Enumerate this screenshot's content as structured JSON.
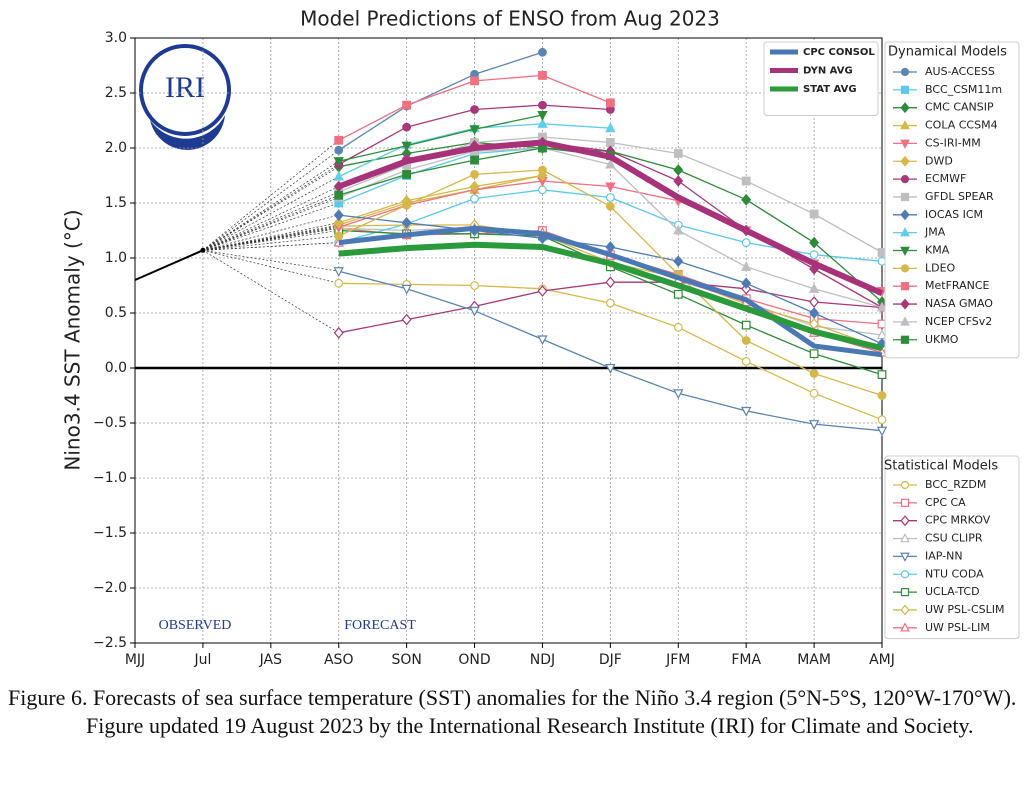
{
  "chart_data": {
    "type": "line",
    "title": "Model Predictions of ENSO from Aug 2023",
    "y_label": "Nino3.4 SST Anomaly (°C)",
    "logo": "IRI",
    "observed_label": "OBSERVED",
    "forecast_label": "FORECAST",
    "dynamical_title": "Dynamical Models",
    "statistical_title": "Statistical Models",
    "categories": [
      "MJJ",
      "Jul",
      "JAS",
      "ASO",
      "SON",
      "OND",
      "NDJ",
      "DJF",
      "JFM",
      "FMA",
      "MAM",
      "AMJ"
    ],
    "ylim": [
      -2.5,
      3.0
    ],
    "yticks": [
      {
        "value": 3,
        "label": "3.0"
      },
      2.5,
      {
        "value": 2,
        "label": "2.0"
      },
      1.5,
      {
        "value": 1,
        "label": "1.0"
      },
      0.5,
      {
        "value": 0,
        "label": "0.0"
      },
      {
        "value": -0.5,
        "label": "−0.5"
      },
      {
        "value": -1,
        "label": "−1.0"
      },
      {
        "value": -1.5,
        "label": "−1.5"
      },
      {
        "value": -2,
        "label": "−2.0"
      },
      {
        "value": -2.5,
        "label": "−2.5"
      }
    ],
    "grid": true,
    "observed": {
      "color": "#000000",
      "values": [
        0.8,
        1.07,
        null,
        null,
        null,
        null,
        null,
        null,
        null,
        null,
        null,
        null
      ]
    },
    "series": [
      {
        "name": "AUS-ACCESS",
        "group": "dynamical",
        "marker": "circle",
        "color": "#5b84b1",
        "values": [
          null,
          null,
          null,
          1.98,
          2.38,
          2.67,
          2.87,
          null,
          null,
          null,
          null,
          null
        ]
      },
      {
        "name": "BCC_CSM11m",
        "group": "dynamical",
        "marker": "square",
        "color": "#5bc8ec",
        "values": [
          null,
          null,
          null,
          1.5,
          1.75,
          1.95,
          2.0,
          null,
          null,
          null,
          null,
          null
        ]
      },
      {
        "name": "CMC CANSIP",
        "group": "dynamical",
        "marker": "diamond",
        "color": "#2e8b3a",
        "values": [
          null,
          null,
          null,
          1.83,
          1.95,
          2.05,
          2.0,
          1.97,
          1.8,
          1.53,
          1.14,
          0.6
        ]
      },
      {
        "name": "COLA CCSM4",
        "group": "dynamical",
        "marker": "triangle-up",
        "color": "#d4b84a",
        "values": [
          null,
          null,
          null,
          1.3,
          1.5,
          1.62,
          1.75,
          null,
          null,
          null,
          null,
          null
        ]
      },
      {
        "name": "CS-IRI-MM",
        "group": "dynamical",
        "marker": "triangle-down",
        "color": "#f07080",
        "values": [
          null,
          null,
          null,
          1.28,
          1.48,
          1.62,
          1.7,
          1.65,
          1.52,
          1.25,
          0.95,
          0.7
        ]
      },
      {
        "name": "DWD",
        "group": "dynamical",
        "marker": "diamond",
        "color": "#d4b84a",
        "values": [
          null,
          null,
          null,
          1.32,
          1.52,
          1.65,
          1.75,
          null,
          null,
          null,
          null,
          null
        ]
      },
      {
        "name": "ECMWF",
        "group": "dynamical",
        "marker": "circle",
        "color": "#a8387a",
        "values": [
          null,
          null,
          null,
          1.85,
          2.19,
          2.35,
          2.39,
          2.35,
          null,
          null,
          null,
          null
        ]
      },
      {
        "name": "GFDL SPEAR",
        "group": "dynamical",
        "marker": "square",
        "color": "#bfbfbf",
        "values": [
          null,
          null,
          null,
          1.6,
          1.85,
          2.05,
          2.1,
          2.05,
          1.95,
          1.7,
          1.4,
          1.05
        ]
      },
      {
        "name": "IOCAS ICM",
        "group": "dynamical",
        "marker": "diamond",
        "color": "#4f7bb5",
        "values": [
          null,
          null,
          null,
          1.39,
          1.32,
          1.25,
          1.18,
          1.1,
          0.97,
          0.77,
          0.5,
          0.22
        ]
      },
      {
        "name": "JMA",
        "group": "dynamical",
        "marker": "triangle-up",
        "color": "#62cde8",
        "values": [
          null,
          null,
          null,
          1.74,
          2.03,
          2.18,
          2.22,
          2.18,
          null,
          null,
          null,
          null
        ]
      },
      {
        "name": "KMA",
        "group": "dynamical",
        "marker": "triangle-down",
        "color": "#2e8b3a",
        "values": [
          null,
          null,
          null,
          1.88,
          2.02,
          2.17,
          2.3,
          null,
          null,
          null,
          null,
          null
        ]
      },
      {
        "name": "LDEO",
        "group": "dynamical",
        "marker": "circle",
        "color": "#d4b84a",
        "values": [
          null,
          null,
          null,
          1.2,
          1.48,
          1.76,
          1.8,
          1.47,
          0.85,
          0.25,
          -0.05,
          -0.25
        ]
      },
      {
        "name": "MetFRANCE",
        "group": "dynamical",
        "marker": "square",
        "color": "#f07080",
        "values": [
          null,
          null,
          null,
          2.07,
          2.39,
          2.61,
          2.66,
          2.41,
          null,
          null,
          null,
          null
        ]
      },
      {
        "name": "NASA GMAO",
        "group": "dynamical",
        "marker": "diamond",
        "color": "#a8387a",
        "values": [
          null,
          null,
          null,
          1.65,
          1.9,
          2.02,
          2.05,
          1.97,
          1.7,
          1.25,
          0.9,
          0.55
        ]
      },
      {
        "name": "NCEP CFSv2",
        "group": "dynamical",
        "marker": "triangle-up",
        "color": "#bfbfbf",
        "values": [
          null,
          null,
          null,
          1.55,
          1.8,
          1.97,
          2.0,
          1.85,
          1.25,
          0.92,
          0.72,
          0.55
        ]
      },
      {
        "name": "UKMO",
        "group": "dynamical",
        "marker": "square",
        "color": "#2e8b3a",
        "values": [
          null,
          null,
          null,
          1.57,
          1.76,
          1.89,
          2.0,
          1.93,
          null,
          null,
          null,
          null
        ]
      },
      {
        "name": "BCC_RZDM",
        "group": "statistical",
        "marker": "circle",
        "color": "#d4b84a",
        "values": [
          null,
          null,
          null,
          0.77,
          0.76,
          0.75,
          0.72,
          0.59,
          0.37,
          0.06,
          -0.23,
          -0.47
        ]
      },
      {
        "name": "CPC CA",
        "group": "statistical",
        "marker": "square",
        "color": "#f07080",
        "values": [
          null,
          null,
          null,
          1.27,
          1.21,
          1.22,
          1.25,
          1.03,
          0.85,
          0.63,
          0.45,
          0.4
        ]
      },
      {
        "name": "CPC MRKOV",
        "group": "statistical",
        "marker": "diamond",
        "color": "#a8387a",
        "values": [
          null,
          null,
          null,
          0.32,
          0.44,
          0.56,
          0.7,
          0.78,
          0.78,
          0.72,
          0.6,
          0.55
        ]
      },
      {
        "name": "CSU CLIPR",
        "group": "statistical",
        "marker": "triangle-up",
        "color": "#bfbfbf",
        "values": [
          null,
          null,
          null,
          1.27,
          1.25,
          1.28,
          1.22,
          1.02,
          0.8,
          0.6,
          0.38,
          0.3
        ]
      },
      {
        "name": "IAP-NN",
        "group": "statistical",
        "marker": "triangle-down",
        "color": "#5b84b1",
        "values": [
          null,
          null,
          null,
          0.88,
          0.72,
          0.52,
          0.26,
          0.0,
          -0.23,
          -0.39,
          -0.51,
          -0.57
        ]
      },
      {
        "name": "NTU CODA",
        "group": "statistical",
        "marker": "circle",
        "color": "#5bc8ec",
        "values": [
          null,
          null,
          null,
          1.14,
          1.31,
          1.54,
          1.62,
          1.55,
          1.3,
          1.14,
          1.03,
          0.97
        ]
      },
      {
        "name": "UCLA-TCD",
        "group": "statistical",
        "marker": "square",
        "color": "#2e8b3a",
        "values": [
          null,
          null,
          null,
          1.25,
          1.22,
          1.22,
          1.2,
          0.92,
          0.67,
          0.39,
          0.13,
          -0.06
        ]
      },
      {
        "name": "UW PSL-CSLIM",
        "group": "statistical",
        "marker": "diamond",
        "color": "#d4b84a",
        "values": [
          null,
          null,
          null,
          1.29,
          1.3,
          1.3,
          1.21,
          0.96,
          0.82,
          0.58,
          0.4,
          0.18
        ]
      },
      {
        "name": "UW PSL-LIM",
        "group": "statistical",
        "marker": "triangle-up",
        "color": "#f07080",
        "values": [
          null,
          null,
          null,
          1.14,
          1.22,
          1.27,
          1.23,
          1.02,
          0.8,
          0.6,
          0.32,
          0.14
        ]
      },
      {
        "name": "CPC CONSOL",
        "group": "consensus",
        "color": "#4a78b5",
        "values": [
          null,
          null,
          null,
          1.14,
          1.21,
          1.27,
          1.22,
          1.03,
          0.82,
          0.62,
          0.2,
          0.12
        ]
      },
      {
        "name": "DYN AVG",
        "group": "consensus",
        "color": "#a8327a",
        "values": [
          null,
          null,
          null,
          1.65,
          1.88,
          2.0,
          2.05,
          1.92,
          1.55,
          1.25,
          0.95,
          0.68
        ]
      },
      {
        "name": "STAT AVG",
        "group": "consensus",
        "color": "#2b9a3a",
        "values": [
          null,
          null,
          null,
          1.04,
          1.09,
          1.12,
          1.1,
          0.95,
          0.75,
          0.54,
          0.33,
          0.18
        ]
      }
    ]
  },
  "caption": "Figure 6. Forecasts of sea surface temperature (SST) anomalies for the Niño 3.4 region (5°N-5°S, 120°W-170°W). Figure updated 19 August 2023 by the International Research Institute (IRI) for Climate and Society."
}
